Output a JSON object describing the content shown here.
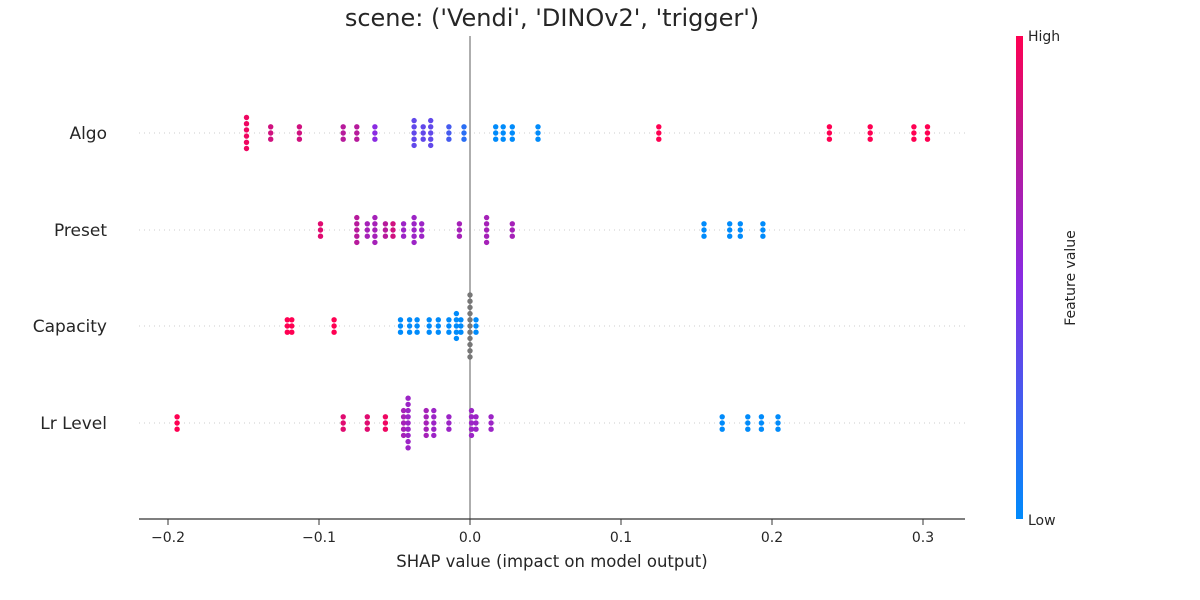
{
  "chart_data": {
    "type": "scatter",
    "subtype": "beeswarm",
    "title": "scene: ('Vendi', 'DINOv2', 'trigger')",
    "xlabel": "SHAP value (impact on model output)",
    "xlim": [
      -0.22,
      0.33
    ],
    "xticks": [
      {
        "value": -0.2,
        "label": "−0.2"
      },
      {
        "value": -0.1,
        "label": "−0.1"
      },
      {
        "value": 0.0,
        "label": "0.0"
      },
      {
        "value": 0.1,
        "label": "0.1"
      },
      {
        "value": 0.2,
        "label": "0.2"
      },
      {
        "value": 0.3,
        "label": "0.3"
      }
    ],
    "grid": false,
    "colorbar": {
      "label": "Feature value",
      "high": "High",
      "low": "Low"
    },
    "colors": {
      "low": "#008bfb",
      "high": "#ff0052",
      "missing": "#777777",
      "zero_line": "#999999",
      "axis": "#333333"
    },
    "features": [
      {
        "name": "Algo",
        "groups": [
          {
            "x": -0.148,
            "n": 6,
            "c": 0.95
          },
          {
            "x": -0.132,
            "n": 3,
            "c": 0.85
          },
          {
            "x": -0.113,
            "n": 3,
            "c": 0.85
          },
          {
            "x": -0.084,
            "n": 3,
            "c": 0.75
          },
          {
            "x": -0.075,
            "n": 3,
            "c": 0.75
          },
          {
            "x": -0.063,
            "n": 3,
            "c": 0.5
          },
          {
            "x": -0.037,
            "n": 5,
            "c": 0.35
          },
          {
            "x": -0.031,
            "n": 3,
            "c": 0.35
          },
          {
            "x": -0.026,
            "n": 5,
            "c": 0.35
          },
          {
            "x": -0.014,
            "n": 3,
            "c": 0.25
          },
          {
            "x": -0.004,
            "n": 3,
            "c": 0.15
          },
          {
            "x": 0.017,
            "n": 3,
            "c": 0.0
          },
          {
            "x": 0.022,
            "n": 3,
            "c": 0.0
          },
          {
            "x": 0.028,
            "n": 3,
            "c": 0.0
          },
          {
            "x": 0.045,
            "n": 3,
            "c": 0.0
          },
          {
            "x": 0.125,
            "n": 3,
            "c": 1.0
          },
          {
            "x": 0.238,
            "n": 3,
            "c": 1.0
          },
          {
            "x": 0.265,
            "n": 3,
            "c": 1.0
          },
          {
            "x": 0.294,
            "n": 3,
            "c": 1.0
          },
          {
            "x": 0.303,
            "n": 3,
            "c": 1.0
          }
        ]
      },
      {
        "name": "Preset",
        "groups": [
          {
            "x": -0.099,
            "n": 3,
            "c": 0.9
          },
          {
            "x": -0.075,
            "n": 5,
            "c": 0.75
          },
          {
            "x": -0.068,
            "n": 3,
            "c": 0.65
          },
          {
            "x": -0.063,
            "n": 5,
            "c": 0.65
          },
          {
            "x": -0.056,
            "n": 3,
            "c": 0.75
          },
          {
            "x": -0.051,
            "n": 3,
            "c": 0.85
          },
          {
            "x": -0.044,
            "n": 3,
            "c": 0.6
          },
          {
            "x": -0.037,
            "n": 5,
            "c": 0.6
          },
          {
            "x": -0.032,
            "n": 3,
            "c": 0.6
          },
          {
            "x": -0.007,
            "n": 3,
            "c": 0.65
          },
          {
            "x": 0.011,
            "n": 5,
            "c": 0.65
          },
          {
            "x": 0.028,
            "n": 3,
            "c": 0.65
          },
          {
            "x": 0.155,
            "n": 3,
            "c": 0.0
          },
          {
            "x": 0.172,
            "n": 3,
            "c": 0.0
          },
          {
            "x": 0.179,
            "n": 3,
            "c": 0.0
          },
          {
            "x": 0.194,
            "n": 3,
            "c": 0.0
          }
        ]
      },
      {
        "name": "Capacity",
        "groups": [
          {
            "x": -0.121,
            "n": 3,
            "c": 1.0
          },
          {
            "x": -0.118,
            "n": 3,
            "c": 1.0
          },
          {
            "x": -0.09,
            "n": 3,
            "c": 1.0
          },
          {
            "x": -0.046,
            "n": 3,
            "c": 0.0
          },
          {
            "x": -0.04,
            "n": 3,
            "c": 0.0
          },
          {
            "x": -0.035,
            "n": 3,
            "c": 0.0
          },
          {
            "x": -0.027,
            "n": 3,
            "c": 0.0
          },
          {
            "x": -0.021,
            "n": 3,
            "c": 0.0
          },
          {
            "x": -0.014,
            "n": 3,
            "c": 0.0
          },
          {
            "x": -0.009,
            "n": 5,
            "c": 0.0
          },
          {
            "x": -0.006,
            "n": 3,
            "c": 0.0
          },
          {
            "x": 0.0,
            "n": 11,
            "c": "missing"
          },
          {
            "x": 0.004,
            "n": 3,
            "c": 0.0
          }
        ]
      },
      {
        "name": "Lr Level",
        "groups": [
          {
            "x": -0.194,
            "n": 3,
            "c": 1.0
          },
          {
            "x": -0.084,
            "n": 3,
            "c": 0.9
          },
          {
            "x": -0.068,
            "n": 3,
            "c": 0.9
          },
          {
            "x": -0.056,
            "n": 3,
            "c": 0.95
          },
          {
            "x": -0.044,
            "n": 5,
            "c": 0.65
          },
          {
            "x": -0.041,
            "n": 9,
            "c": 0.6
          },
          {
            "x": -0.029,
            "n": 5,
            "c": 0.65
          },
          {
            "x": -0.024,
            "n": 5,
            "c": 0.6
          },
          {
            "x": -0.014,
            "n": 3,
            "c": 0.6
          },
          {
            "x": 0.001,
            "n": 5,
            "c": 0.6
          },
          {
            "x": 0.004,
            "n": 3,
            "c": 0.6
          },
          {
            "x": 0.014,
            "n": 3,
            "c": 0.6
          },
          {
            "x": 0.167,
            "n": 3,
            "c": 0.0
          },
          {
            "x": 0.184,
            "n": 3,
            "c": 0.0
          },
          {
            "x": 0.193,
            "n": 3,
            "c": 0.0
          },
          {
            "x": 0.204,
            "n": 3,
            "c": 0.0
          }
        ]
      }
    ]
  }
}
